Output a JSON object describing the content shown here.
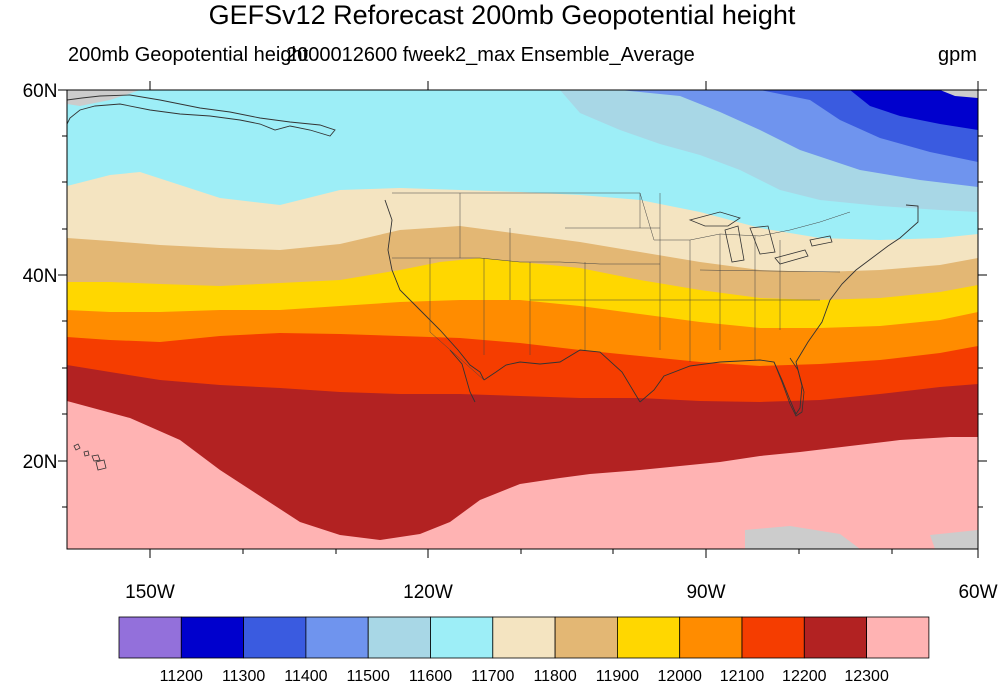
{
  "title": "GEFSv12 Reforecast 200mb Geopotential height",
  "subtitle_left": "200mb Geopotential height",
  "subtitle_center": "2000012600 fweek2_max Ensemble_Average",
  "subtitle_right": "gpm",
  "map": {
    "projection": "cylindrical equidistant",
    "lon_range": [
      -160,
      -60
    ],
    "lat_range": [
      10,
      60
    ],
    "lat_ticks": [
      "20N",
      "40N",
      "60N"
    ],
    "lon_ticks": [
      "150W",
      "120W",
      "90W",
      "60W"
    ]
  },
  "colorbar": {
    "levels": [
      "11200",
      "11300",
      "11400",
      "11500",
      "11600",
      "11700",
      "11800",
      "11900",
      "12000",
      "12100",
      "12200",
      "12300"
    ],
    "colors": [
      "#9370db",
      "#0000cd",
      "#3a5be0",
      "#6f94ee",
      "#a8d7e6",
      "#9deef7",
      "#f4e4c1",
      "#e3b774",
      "#ffd700",
      "#ff8c00",
      "#f53d00",
      "#b22222",
      "#ffb3b3"
    ]
  }
}
